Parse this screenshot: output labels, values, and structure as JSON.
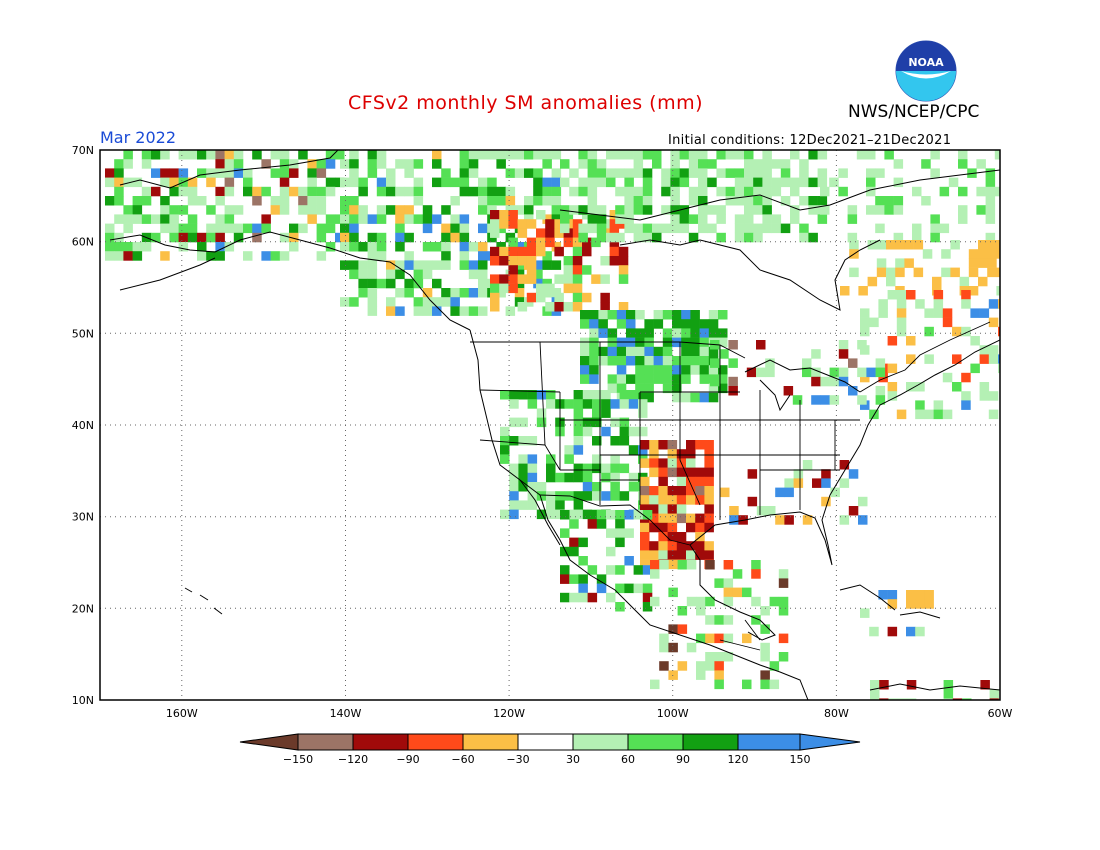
{
  "title": "CFSv2 monthly SM anomalies (mm)",
  "agency": "NWS/NCEP/CPC",
  "logo_text": "NOAA",
  "period": "Mar 2022",
  "initial_conditions": "Initial conditions: 12Dec2021–21Dec2021",
  "lat_labels": [
    "70N",
    "60N",
    "50N",
    "40N",
    "30N",
    "20N",
    "10N"
  ],
  "lon_labels": [
    "160W",
    "140W",
    "120W",
    "100W",
    "80W",
    "60W"
  ],
  "legend": {
    "labels": [
      "−150",
      "−120",
      "−90",
      "−60",
      "−30",
      "30",
      "60",
      "90",
      "120",
      "150"
    ],
    "colors": [
      "#6b3a2a",
      "#9c7466",
      "#a00a0a",
      "#ff4a1a",
      "#fbbf46",
      "#ffffff",
      "#b4f0b4",
      "#55e055",
      "#12a012",
      "#3c8ee6",
      "#3c8ee6"
    ]
  },
  "colors": {
    "title": "#dd0000",
    "period": "#1a4bd6",
    "ocean": "#ffffff"
  }
}
